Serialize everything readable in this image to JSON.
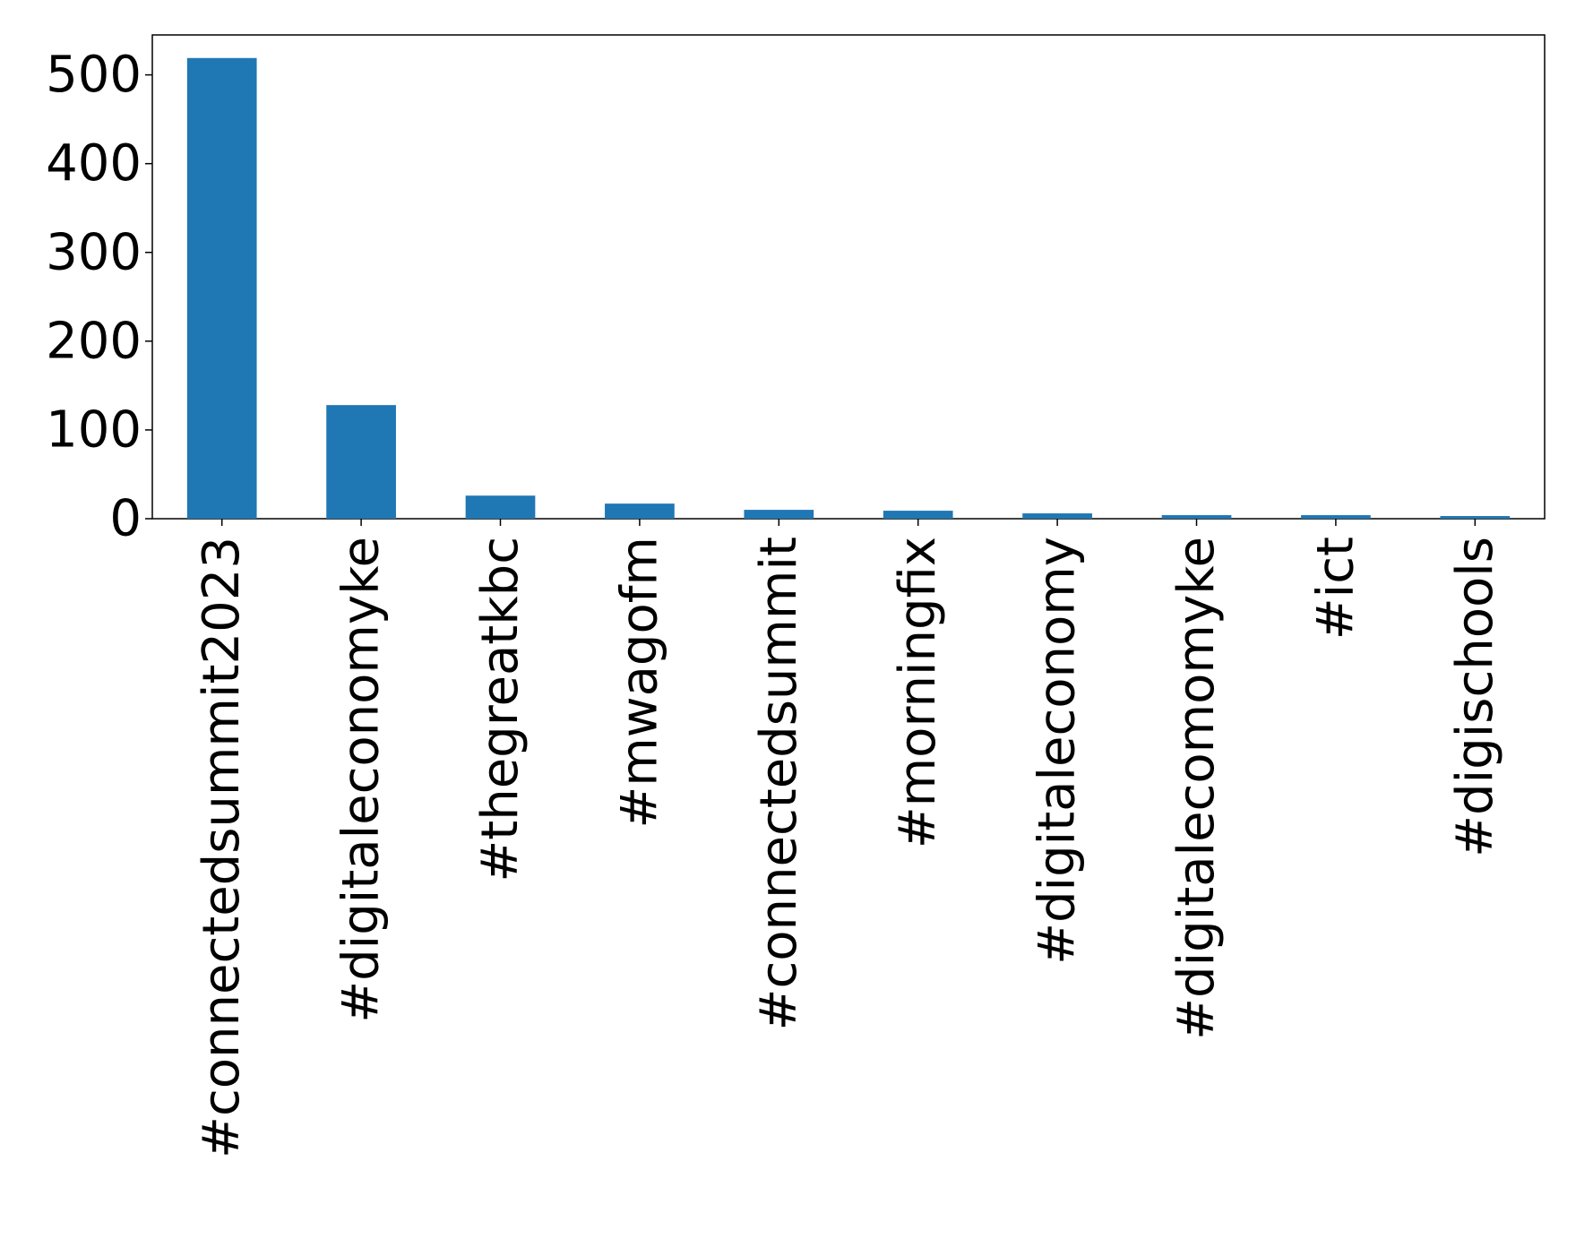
{
  "chart_data": {
    "type": "bar",
    "categories": [
      "#connectedsummit2023",
      "#digitaleconomyke",
      "#thegreatkbc",
      "#mwagofm",
      "#connectedsummit",
      "#morningfix",
      "#digitaleconomy",
      "#digitalecomomyke",
      "#ict",
      "#digischools"
    ],
    "values": [
      519,
      128,
      26,
      17,
      10,
      9,
      6,
      4,
      4,
      3
    ],
    "color": "#1f77b4",
    "ylim": [
      0,
      545
    ],
    "yticks": [
      0,
      100,
      200,
      300,
      400,
      500
    ],
    "grid": false
  }
}
